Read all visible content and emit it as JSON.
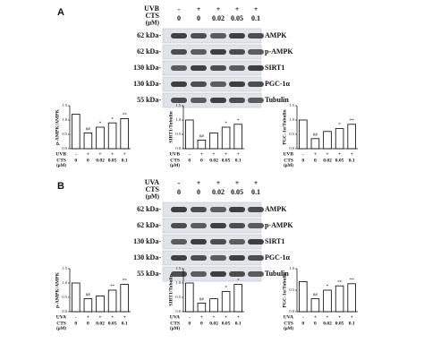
{
  "panels": [
    {
      "label": "A",
      "treatment": "UVB",
      "signs": [
        "-",
        "+",
        "+",
        "+",
        "+"
      ],
      "cts": "CTS",
      "unit": "(μM)",
      "doses": [
        "0",
        "0",
        "0.02",
        "0.05",
        "0.1"
      ],
      "kda": [
        "62 kDa-",
        "62 kDa-",
        "130 kDa-",
        "130 kDa-",
        "55 kDa-"
      ],
      "proteins": [
        "AMPK",
        "p-AMPK",
        "SIRT1",
        "PGC-1α",
        "Tubulin"
      ]
    },
    {
      "label": "B",
      "treatment": "UVA",
      "signs": [
        "-",
        "+",
        "+",
        "+",
        "+"
      ],
      "cts": "CTS",
      "unit": "(μM)",
      "doses": [
        "0",
        "0",
        "0.02",
        "0.05",
        "0.1"
      ],
      "kda": [
        "62 kDa-",
        "62 kDa-",
        "130 kDa-",
        "130 kDa-",
        "55 kDa-"
      ],
      "proteins": [
        "AMPK",
        "p-AMPK",
        "SIRT1",
        "PGC-1α",
        "Tubulin"
      ]
    }
  ],
  "chart_data": [
    {
      "type": "bar",
      "ylabel": "p-AMPK/AMPK",
      "treatment_label": "UVB",
      "treatment_row": [
        "-",
        "+",
        "+",
        "+",
        "+"
      ],
      "dose_label": "CTS",
      "dose_unit": "(μM)",
      "categories": [
        "0",
        "0",
        "0.02",
        "0.05",
        "0.1"
      ],
      "values": [
        1.2,
        0.55,
        0.75,
        0.9,
        1.05
      ],
      "annotations": [
        null,
        "##",
        "*",
        "*",
        "**"
      ],
      "ylim": [
        0,
        1.5
      ],
      "yticks": [
        {
          "value": 0,
          "label": "0.0"
        },
        {
          "value": 0.5,
          "label": "0.5"
        },
        {
          "value": 1,
          "label": "1.0"
        },
        {
          "value": 1.5,
          "label": "1.5"
        }
      ]
    },
    {
      "type": "bar",
      "ylabel": "SIRT1/Tubulin",
      "treatment_label": "UVB",
      "treatment_row": [
        "-",
        "+",
        "+",
        "+",
        "+"
      ],
      "dose_label": "CTS",
      "dose_unit": "(μM)",
      "categories": [
        "0",
        "0",
        "0.02",
        "0.05",
        "0.1"
      ],
      "values": [
        1.0,
        0.3,
        0.55,
        0.75,
        0.85
      ],
      "annotations": [
        null,
        "##",
        null,
        "*",
        "*"
      ],
      "ylim": [
        0,
        1.5
      ],
      "yticks": [
        {
          "value": 0,
          "label": "0.0"
        },
        {
          "value": 0.5,
          "label": "0.5"
        },
        {
          "value": 1,
          "label": "1.0"
        },
        {
          "value": 1.5,
          "label": "1.5"
        }
      ]
    },
    {
      "type": "bar",
      "ylabel": "PGC-1α/Tubulin",
      "treatment_label": "UVB",
      "treatment_row": [
        "-",
        "+",
        "+",
        "+",
        "+"
      ],
      "dose_label": "CTS",
      "dose_unit": "(μM)",
      "categories": [
        "0",
        "0",
        "0.02",
        "0.05",
        "0.1"
      ],
      "values": [
        1.0,
        0.35,
        0.6,
        0.7,
        0.85
      ],
      "annotations": [
        null,
        "##",
        null,
        "*",
        "**"
      ],
      "ylim": [
        0,
        1.5
      ],
      "yticks": [
        {
          "value": 0,
          "label": "0.0"
        },
        {
          "value": 0.5,
          "label": "0.5"
        },
        {
          "value": 1,
          "label": "1.0"
        },
        {
          "value": 1.5,
          "label": "1.5"
        }
      ]
    },
    {
      "type": "bar",
      "ylabel": "p-AMPK/AMPK",
      "treatment_label": "UVA",
      "treatment_row": [
        "-",
        "+",
        "+",
        "+",
        "+"
      ],
      "dose_label": "CTS",
      "dose_unit": "(μM)",
      "categories": [
        "0",
        "0",
        "0.02",
        "0.05",
        "0.1"
      ],
      "values": [
        1.0,
        0.45,
        0.55,
        0.75,
        0.95
      ],
      "annotations": [
        null,
        "##",
        null,
        "**",
        "**"
      ],
      "ylim": [
        0,
        1.5
      ],
      "yticks": [
        {
          "value": 0,
          "label": "0.0"
        },
        {
          "value": 0.5,
          "label": "0.5"
        },
        {
          "value": 1,
          "label": "1.0"
        },
        {
          "value": 1.5,
          "label": "1.5"
        }
      ]
    },
    {
      "type": "bar",
      "ylabel": "SIRT1/Tubulin",
      "treatment_label": "UVA",
      "treatment_row": [
        "-",
        "+",
        "+",
        "+",
        "+"
      ],
      "dose_label": "CTS",
      "dose_unit": "(μM)",
      "categories": [
        "0",
        "0",
        "0.02",
        "0.05",
        "0.1"
      ],
      "values": [
        1.0,
        0.3,
        0.45,
        0.7,
        0.95
      ],
      "annotations": [
        null,
        "##",
        null,
        "*",
        "*"
      ],
      "ylim": [
        0,
        1.5
      ],
      "yticks": [
        {
          "value": 0,
          "label": "0.0"
        },
        {
          "value": 0.5,
          "label": "0.5"
        },
        {
          "value": 1,
          "label": "1.0"
        },
        {
          "value": 1.5,
          "label": "1.5"
        }
      ]
    },
    {
      "type": "bar",
      "ylabel": "PGC-1α/Tubulin",
      "treatment_label": "UVA",
      "treatment_row": [
        "-",
        "+",
        "+",
        "+",
        "+"
      ],
      "dose_label": "CTS",
      "dose_unit": "(μM)",
      "categories": [
        "0",
        "0",
        "0.02",
        "0.05",
        "0.1"
      ],
      "values": [
        0.7,
        0.3,
        0.5,
        0.6,
        0.65
      ],
      "annotations": [
        null,
        "##",
        "*",
        "**",
        "**"
      ],
      "ylim": [
        0,
        1.0
      ],
      "yticks": [
        {
          "value": 0,
          "label": "0.0"
        },
        {
          "value": 0.5,
          "label": "0.5"
        },
        {
          "value": 1,
          "label": "1.0"
        }
      ]
    }
  ]
}
